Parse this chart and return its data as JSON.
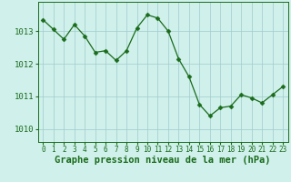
{
  "x": [
    0,
    1,
    2,
    3,
    4,
    5,
    6,
    7,
    8,
    9,
    10,
    11,
    12,
    13,
    14,
    15,
    16,
    17,
    18,
    19,
    20,
    21,
    22,
    23
  ],
  "y": [
    1013.35,
    1013.05,
    1012.75,
    1013.2,
    1012.85,
    1012.35,
    1012.4,
    1012.1,
    1012.4,
    1013.1,
    1013.5,
    1013.4,
    1013.0,
    1012.15,
    1011.6,
    1010.75,
    1010.4,
    1010.65,
    1010.7,
    1011.05,
    1010.95,
    1010.8,
    1011.05,
    1011.3
  ],
  "line_color": "#1a6b1a",
  "marker": "D",
  "marker_size": 2.5,
  "bg_color": "#cff0eb",
  "grid_color": "#a0cccc",
  "xlabel": "Graphe pression niveau de la mer (hPa)",
  "xlabel_color": "#1a6b1a",
  "xlabel_fontsize": 7.5,
  "tick_color": "#1a6b1a",
  "ytick_fontsize": 6.5,
  "xtick_fontsize": 5.5,
  "yticks": [
    1010,
    1011,
    1012,
    1013
  ],
  "ylim": [
    1009.6,
    1013.9
  ],
  "xlim": [
    -0.5,
    23.5
  ],
  "xticks": [
    0,
    1,
    2,
    3,
    4,
    5,
    6,
    7,
    8,
    9,
    10,
    11,
    12,
    13,
    14,
    15,
    16,
    17,
    18,
    19,
    20,
    21,
    22,
    23
  ]
}
